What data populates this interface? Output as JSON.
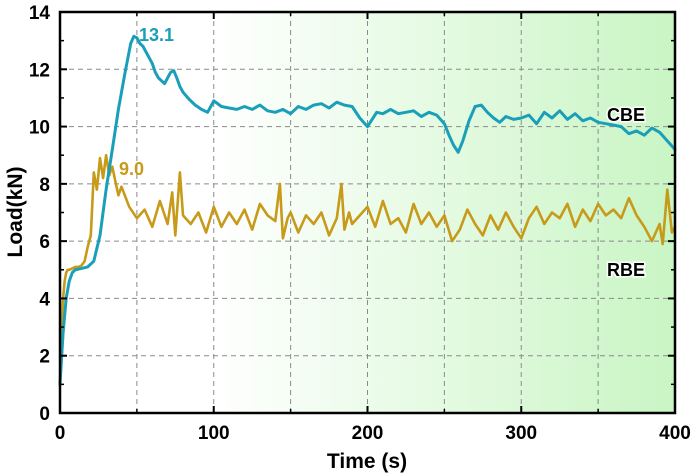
{
  "colors": {
    "cbe": "#1a9fb8",
    "rbe": "#c89a1a",
    "background_gradient_start": "#ffffff",
    "background_gradient_end": "#c9f5c4"
  },
  "chart_data": {
    "type": "line",
    "xlabel": "Time (s)",
    "ylabel": "Load(kN)",
    "xlim": [
      0,
      400
    ],
    "ylim": [
      0,
      14
    ],
    "x_ticks": [
      "0",
      "100",
      "200",
      "300",
      "400"
    ],
    "y_ticks": [
      "0",
      "2",
      "4",
      "6",
      "8",
      "10",
      "12",
      "14"
    ],
    "grid": true,
    "series": [
      {
        "name": "CBE",
        "peak_label": "13.1",
        "x": [
          0,
          2,
          4,
          6,
          8,
          10,
          14,
          18,
          22,
          26,
          30,
          34,
          38,
          42,
          46,
          48,
          50,
          52,
          54,
          56,
          58,
          60,
          62,
          64,
          66,
          68,
          70,
          72,
          74,
          76,
          78,
          80,
          84,
          88,
          92,
          96,
          100,
          105,
          110,
          115,
          120,
          125,
          130,
          135,
          140,
          145,
          150,
          155,
          160,
          165,
          170,
          175,
          180,
          185,
          190,
          195,
          200,
          203,
          206,
          210,
          215,
          220,
          225,
          230,
          235,
          240,
          245,
          250,
          253,
          256,
          259,
          262,
          266,
          270,
          274,
          278,
          282,
          286,
          290,
          295,
          300,
          305,
          310,
          315,
          320,
          325,
          330,
          335,
          340,
          345,
          350,
          355,
          360,
          365,
          370,
          375,
          380,
          385,
          390,
          395,
          400
        ],
        "values": [
          1.0,
          2.8,
          4.0,
          4.6,
          4.9,
          5.0,
          5.05,
          5.1,
          5.3,
          6.2,
          7.8,
          9.2,
          10.6,
          11.8,
          12.9,
          13.15,
          13.1,
          12.9,
          12.8,
          12.6,
          12.4,
          12.2,
          11.9,
          11.7,
          11.6,
          11.5,
          11.7,
          11.9,
          11.95,
          11.7,
          11.4,
          11.2,
          10.95,
          10.75,
          10.6,
          10.5,
          10.9,
          10.7,
          10.65,
          10.6,
          10.7,
          10.6,
          10.75,
          10.55,
          10.5,
          10.6,
          10.45,
          10.7,
          10.6,
          10.75,
          10.8,
          10.65,
          10.85,
          10.75,
          10.7,
          10.3,
          10.0,
          10.25,
          10.5,
          10.45,
          10.6,
          10.45,
          10.5,
          10.55,
          10.35,
          10.5,
          10.4,
          10.1,
          9.7,
          9.35,
          9.1,
          9.5,
          10.2,
          10.7,
          10.75,
          10.5,
          10.3,
          10.15,
          10.35,
          10.25,
          10.3,
          10.4,
          10.1,
          10.5,
          10.3,
          10.55,
          10.25,
          10.45,
          10.2,
          10.3,
          10.15,
          10.1,
          10.05,
          10.0,
          9.75,
          9.85,
          9.7,
          9.95,
          9.8,
          9.5,
          9.2
        ]
      },
      {
        "name": "RBE",
        "peak_label": "9.0",
        "x": [
          0,
          1,
          2,
          3,
          4,
          5,
          6,
          8,
          10,
          12,
          14,
          16,
          18,
          20,
          22,
          24,
          26,
          28,
          30,
          32,
          34,
          36,
          38,
          40,
          45,
          50,
          55,
          60,
          65,
          70,
          73,
          75,
          78,
          80,
          85,
          90,
          95,
          100,
          105,
          110,
          115,
          120,
          125,
          130,
          135,
          140,
          143,
          145,
          148,
          150,
          155,
          160,
          165,
          170,
          175,
          180,
          183,
          185,
          188,
          190,
          195,
          200,
          205,
          210,
          215,
          220,
          225,
          230,
          235,
          240,
          245,
          250,
          255,
          260,
          265,
          270,
          275,
          280,
          285,
          290,
          295,
          300,
          305,
          310,
          315,
          320,
          325,
          330,
          335,
          340,
          345,
          350,
          355,
          360,
          365,
          370,
          375,
          380,
          385,
          390,
          392,
          395,
          398,
          400
        ],
        "values": [
          1.0,
          2.8,
          4.0,
          4.6,
          4.9,
          5.0,
          5.0,
          5.05,
          5.1,
          5.1,
          5.15,
          5.3,
          5.8,
          6.2,
          8.4,
          7.8,
          8.9,
          8.2,
          9.0,
          8.3,
          8.6,
          8.1,
          7.6,
          7.9,
          7.2,
          6.8,
          7.1,
          6.5,
          7.4,
          6.6,
          7.7,
          6.2,
          8.4,
          6.9,
          6.6,
          7.0,
          6.3,
          7.2,
          6.5,
          7.0,
          6.6,
          7.1,
          6.4,
          7.3,
          6.9,
          6.7,
          8.0,
          6.1,
          6.8,
          7.0,
          6.3,
          6.9,
          6.6,
          7.0,
          6.2,
          6.8,
          8.0,
          6.4,
          7.0,
          6.6,
          6.9,
          7.2,
          6.5,
          7.4,
          6.6,
          6.8,
          6.3,
          7.3,
          6.6,
          7.0,
          6.5,
          6.9,
          6.0,
          6.4,
          7.1,
          6.6,
          6.2,
          6.9,
          6.4,
          7.0,
          6.5,
          6.1,
          6.8,
          7.2,
          6.6,
          7.0,
          6.8,
          7.3,
          6.5,
          7.1,
          6.7,
          7.3,
          6.9,
          7.1,
          6.8,
          7.5,
          6.9,
          6.5,
          6.0,
          6.6,
          5.9,
          7.8,
          6.3,
          6.5
        ]
      }
    ]
  }
}
